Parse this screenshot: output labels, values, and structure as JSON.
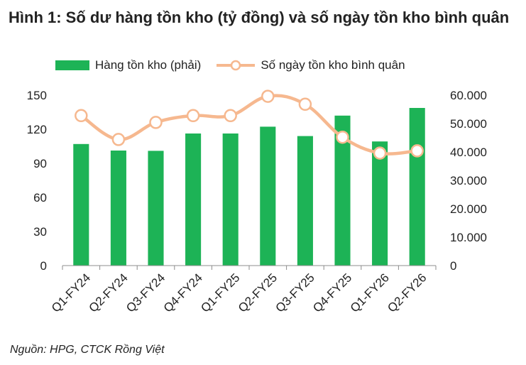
{
  "title": "Hình 1: Số dư hàng tồn kho (tỷ đồng) và số ngày tồn kho bình quân",
  "source": "Nguồn: HPG, CTCK Rồng Việt",
  "colors": {
    "bar": "#1db356",
    "line": "#f6b88f",
    "marker_fill": "#ffffff"
  },
  "legend": {
    "bar_label": "Hàng tồn kho (phải)",
    "line_label": "Số ngày tồn kho bình quân",
    "placement": "top"
  },
  "chart_data": {
    "type": "bar+line",
    "categories": [
      "Q1-FY24",
      "Q2-FY24",
      "Q3-FY24",
      "Q4-FY24",
      "Q1-FY25",
      "Q2-FY25",
      "Q3-FY25",
      "Q4-FY25",
      "Q1-FY26",
      "Q2-FY26"
    ],
    "series": [
      {
        "name": "Hàng tồn kho (phải)",
        "type": "bar",
        "axis": "right",
        "values": [
          42800,
          40500,
          40400,
          46500,
          46500,
          48900,
          45600,
          52800,
          43700,
          55500
        ]
      },
      {
        "name": "Số ngày tồn kho bình quân",
        "type": "line",
        "axis": "left",
        "values": [
          132,
          111,
          126,
          132,
          132,
          149,
          142,
          113,
          99,
          101
        ]
      }
    ],
    "left_axis": {
      "min": 0,
      "max": 150,
      "ticks": [
        "0",
        "30",
        "60",
        "90",
        "120",
        "150"
      ]
    },
    "right_axis": {
      "min": 0,
      "max": 60000,
      "ticks": [
        "0",
        "10.000",
        "20.000",
        "30.000",
        "40.000",
        "50.000",
        "60.000"
      ]
    },
    "grid": false
  }
}
